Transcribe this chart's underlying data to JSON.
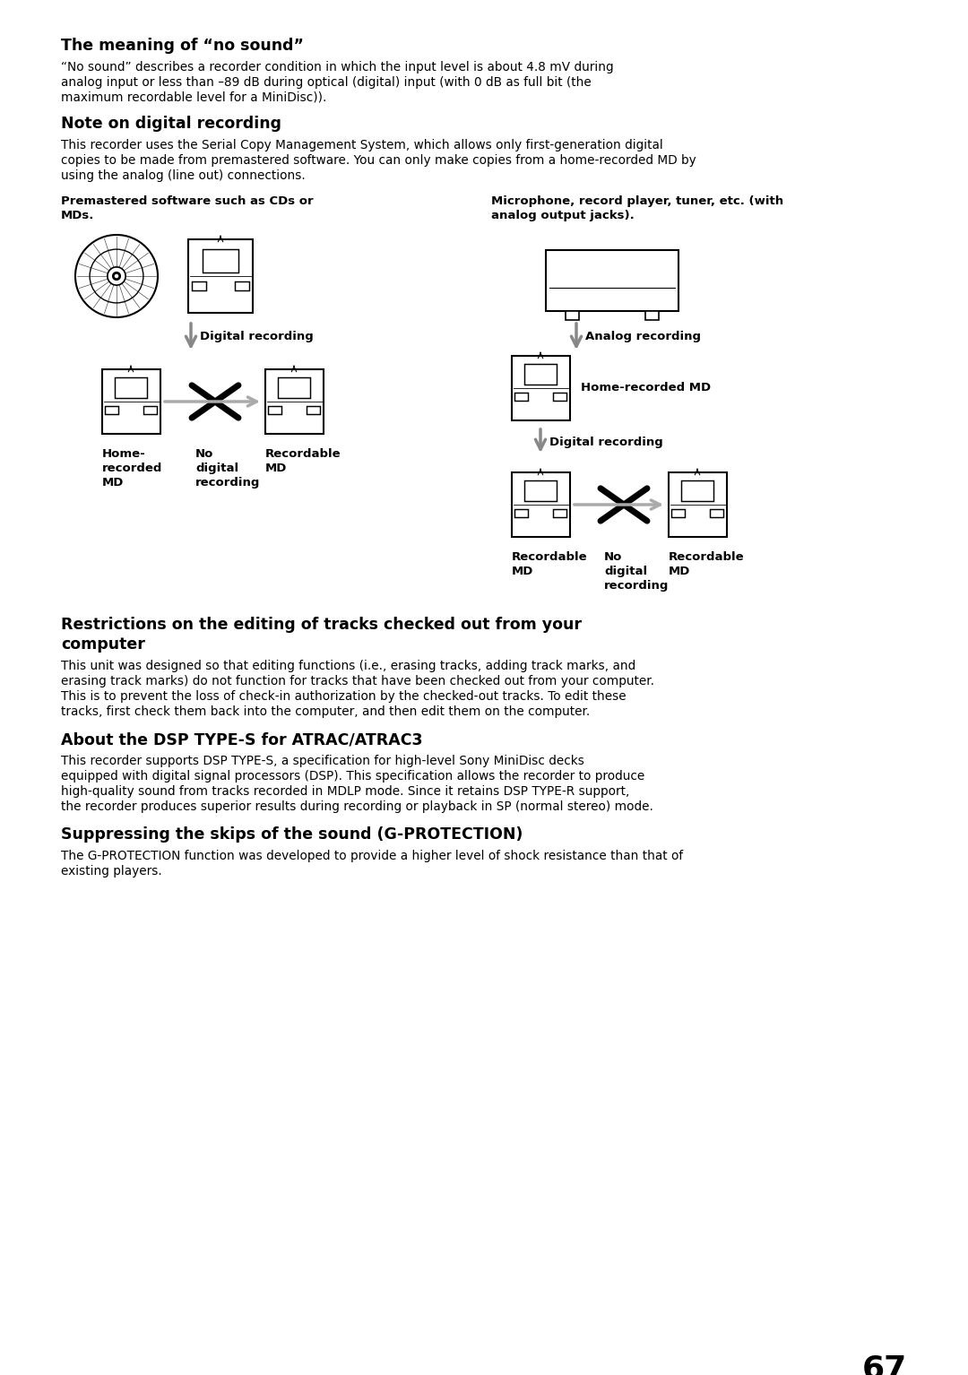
{
  "bg_color": "#ffffff",
  "page_number": "67",
  "sections": [
    {
      "heading": "The meaning of “no sound”",
      "body": "“No sound” describes a recorder condition in which the input level is about 4.8 mV during\nanalog input or less than –89 dB during optical (digital) input (with 0 dB as full bit (the\nmaximum recordable level for a MiniDisc))."
    },
    {
      "heading": "Note on digital recording",
      "body": "This recorder uses the Serial Copy Management System, which allows only first-generation digital\ncopies to be made from premastered software. You can only make copies from a home-recorded MD by\nusing the analog (line out) connections."
    },
    {
      "heading": "Restrictions on the editing of tracks checked out from your\ncomputer",
      "body": "This unit was designed so that editing functions (i.e., erasing tracks, adding track marks, and\nerasing track marks) do not function for tracks that have been checked out from your computer.\nThis is to prevent the loss of check-in authorization by the checked-out tracks. To edit these\ntracks, first check them back into the computer, and then edit them on the computer."
    },
    {
      "heading": "About the DSP TYPE-S for ATRAC/ATRAC3",
      "body": "This recorder supports DSP TYPE-S, a specification for high-level Sony MiniDisc decks\nequipped with digital signal processors (DSP). This specification allows the recorder to produce\nhigh-quality sound from tracks recorded in MDLP mode. Since it retains DSP TYPE-R support,\nthe recorder produces superior results during recording or playback in SP (normal stereo) mode."
    },
    {
      "heading": "Suppressing the skips of the sound (G-PROTECTION)",
      "body": "The G-PROTECTION function was developed to provide a higher level of shock resistance than that of\nexisting players."
    }
  ]
}
